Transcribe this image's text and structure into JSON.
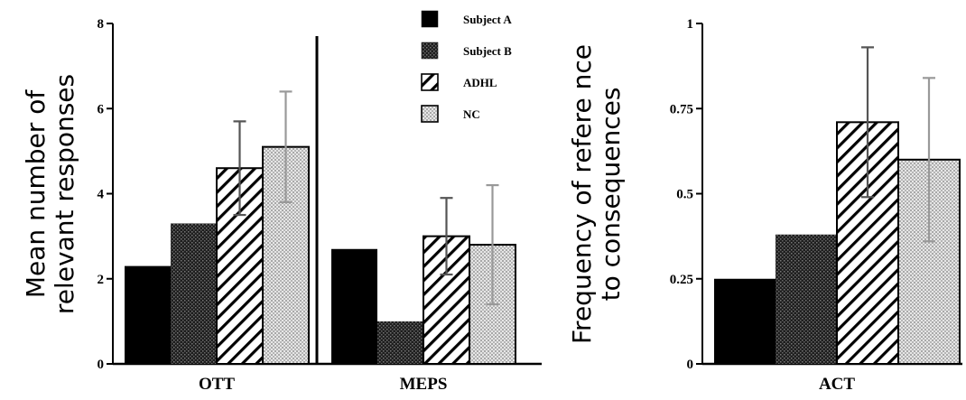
{
  "chart_data": [
    {
      "type": "bar",
      "ylabel_lines": [
        "Mean number of",
        "relevant responses"
      ],
      "categories": [
        "OTT",
        "MEPS"
      ],
      "ylim": [
        0,
        8
      ],
      "yticks": [
        "0",
        "2",
        "4",
        "6",
        "8"
      ],
      "series": [
        {
          "name": "Subject A",
          "values": [
            2.3,
            2.7
          ],
          "errors": [
            null,
            null
          ]
        },
        {
          "name": "Subject B",
          "values": [
            3.3,
            1.0
          ],
          "errors": [
            null,
            null
          ]
        },
        {
          "name": "ADHL",
          "values": [
            4.6,
            3.0
          ],
          "errors": [
            1.1,
            0.9
          ]
        },
        {
          "name": "NC",
          "values": [
            5.1,
            2.8
          ],
          "errors": [
            1.3,
            1.4
          ]
        }
      ],
      "legend": "top-right",
      "grid": false
    },
    {
      "type": "bar",
      "ylabel_lines": [
        "Frequency of refere nce",
        "to consequences"
      ],
      "categories": [
        "ACT"
      ],
      "ylim": [
        0,
        1
      ],
      "yticks": [
        "0",
        "0.25",
        "0.5",
        "0.75",
        "1"
      ],
      "series": [
        {
          "name": "Subject A",
          "values": [
            0.25
          ],
          "errors": [
            null
          ]
        },
        {
          "name": "Subject B",
          "values": [
            0.38
          ],
          "errors": [
            null
          ]
        },
        {
          "name": "ADHL",
          "values": [
            0.71
          ],
          "errors": [
            0.22
          ]
        },
        {
          "name": "NC",
          "values": [
            0.6
          ],
          "errors": [
            0.24
          ]
        }
      ],
      "grid": false
    }
  ],
  "colors": {
    "subject_a": "#000000",
    "subject_b": "#2b2b2b",
    "adhl": "#ffffff",
    "nc": "#d8d8d8",
    "error_bar_fill_hatched": "#444444",
    "error_bar_fill_dotted": "#999999"
  }
}
